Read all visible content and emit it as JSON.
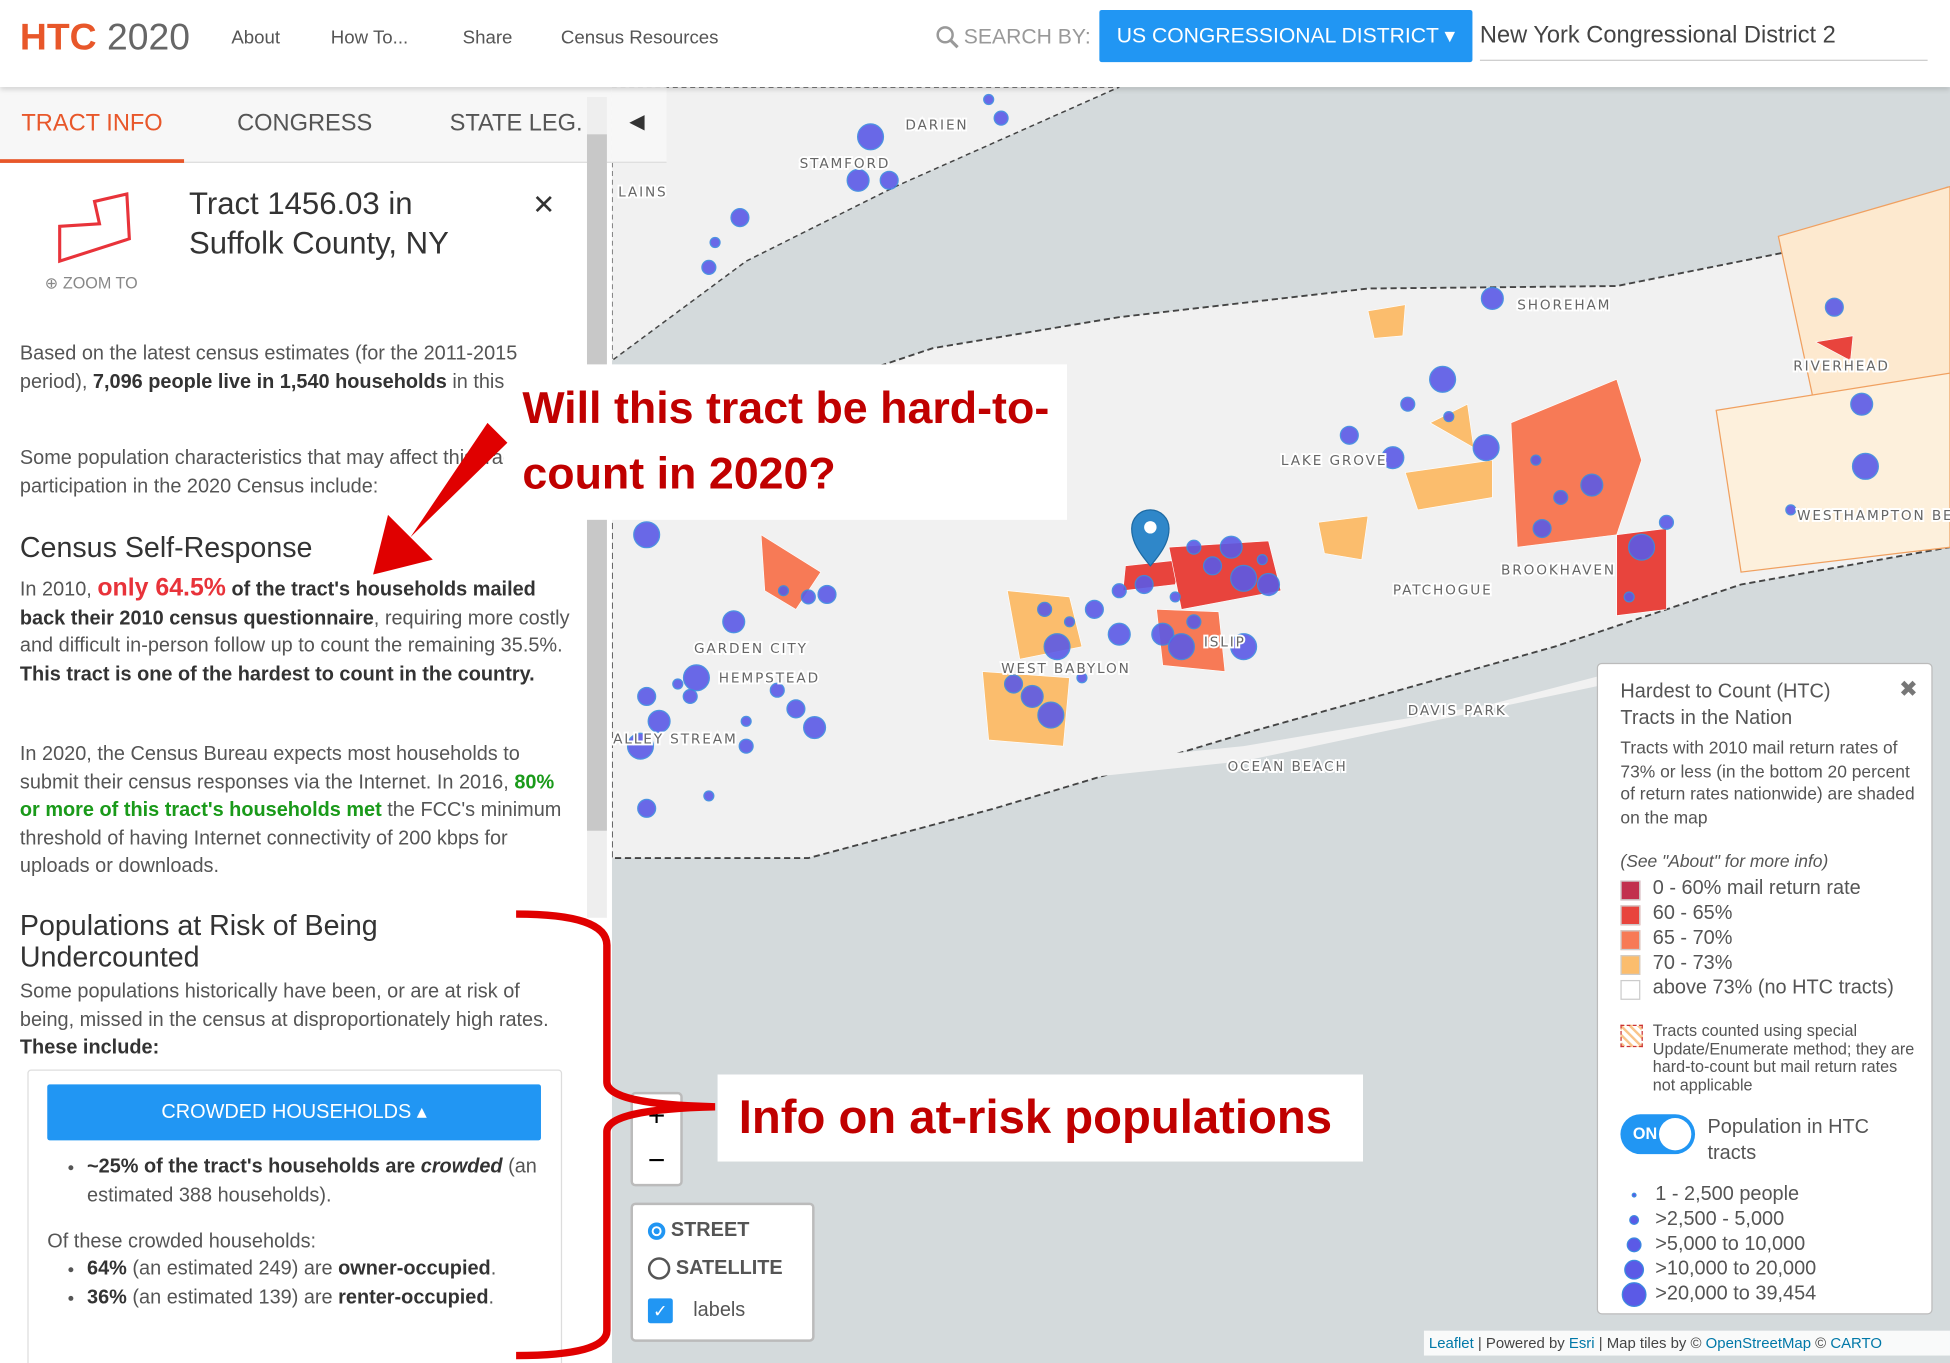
{
  "header": {
    "logo_bold": "HTC",
    "logo_year": "2020",
    "nav": [
      "About",
      "How To...",
      "Share",
      "Census Resources"
    ],
    "search_label": "SEARCH BY:",
    "search_dropdown": "US CONGRESSIONAL DISTRICT",
    "search_value": "New York Congressional District 2"
  },
  "sidebar": {
    "tabs": [
      "TRACT INFO",
      "CONGRESS",
      "STATE LEG."
    ],
    "zoom": "ZOOM TO",
    "tract_title": "Tract 1456.03 in Suffolk County, NY",
    "p1": [
      "Based on the latest census estimates (for the 2011-2015 period), ",
      "7,096 people live in 1,540 households",
      " in this tract."
    ],
    "p2": "Some population characteristics that may affect this tract's participation in the 2020 Census include:",
    "self_response_heading": "Census Self-Response",
    "p3": [
      "In 2010, ",
      "only 64.5%",
      " of the tract's households mailed back their 2010 census questionnaire",
      ", requiring more costly and difficult in-person follow up to count the remaining 35.5%. ",
      "This tract is one of the hardest to count in the country."
    ],
    "p4": [
      "In 2020, the Census Bureau expects most households to submit their census responses via the Internet. In 2016, ",
      "80% or more of this tract's households met",
      " the FCC's minimum threshold of having Internet connectivity of 200 kbps for uploads or downloads."
    ],
    "risk_heading": "Populations at Risk of Being Undercounted",
    "p5": [
      "Some populations historically have been, or are at risk of being, missed in the census at disproportionately high rates. ",
      "These include:"
    ],
    "crowded_button": "CROWDED HOUSEHOLDS",
    "crowded_bullet": [
      "~25% of the tract's households are ",
      "crowded",
      " (an estimated 388 households)."
    ],
    "crowded_sub": "Of these crowded households:",
    "crowded_items": [
      [
        "64%",
        " (an estimated 249) are ",
        "owner-occupied",
        "."
      ],
      [
        "36%",
        " (an estimated 139) are ",
        "renter-occupied",
        "."
      ]
    ]
  },
  "annotations": {
    "question": "Will this tract be hard-to-count in 2020?",
    "info": "Info on at-risk populations"
  },
  "map": {
    "places": [
      "DARIEN",
      "STAMFORD",
      "LAINS",
      "SHOREHAM",
      "RIVERHEAD",
      "LAKE GROVE",
      "WESTHAMPTON BEACH",
      "BROOKHAVEN",
      "PATCHOGUE",
      "ISLIP",
      "GARDEN CITY",
      "HEMPSTEAD",
      "WEST BABYLON",
      "ALLEY STREAM",
      "DAVIS PARK",
      "OCEAN BEACH"
    ],
    "layers": [
      "STREET",
      "SATELLITE",
      "labels"
    ],
    "attribution": [
      "Leaflet",
      " | Powered by ",
      "Esri",
      " | Map tiles by © ",
      "OpenStreetMap",
      " © ",
      "CARTO"
    ]
  },
  "legend": {
    "title": "Hardest to Count (HTC) Tracts in the Nation",
    "description": "Tracts with 2010 mail return rates of 73% or less (in the bottom 20 percent of return rates nationwide) are shaded on the map",
    "note": "(See \"About\" for more info)",
    "items": [
      {
        "label": "0 - 60% mail return rate",
        "color": "#c2304e"
      },
      {
        "label": "60 - 65%",
        "color": "#e8443d"
      },
      {
        "label": "65 - 70%",
        "color": "#f77a56"
      },
      {
        "label": "70 - 73%",
        "color": "#fbbd6d"
      },
      {
        "label": "above 73% (no HTC tracts)",
        "color": "#ffffff"
      }
    ],
    "special": "Tracts counted using special Update/Enumerate method; they are hard-to-count but mail return rates not applicable",
    "toggle": "ON",
    "toggle_label": "Population in HTC tracts",
    "sizes": [
      "1 - 2,500 people",
      ">2,500 - 5,000",
      ">5,000 to 10,000",
      ">10,000 to 20,000",
      ">20,000 to 39,454"
    ]
  }
}
